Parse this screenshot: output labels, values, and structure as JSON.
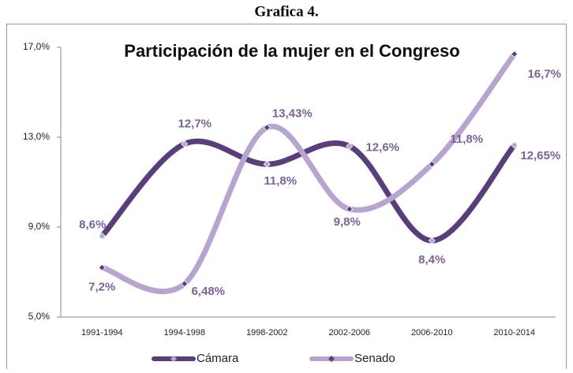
{
  "chart_data": {
    "type": "line",
    "heading": "Grafica 4.",
    "title": "Participación de la mujer en el Congreso",
    "categories": [
      "1991-1994",
      "1994-1998",
      "1998-2002",
      "2002-2006",
      "2006-2010",
      "2010-2014"
    ],
    "series": [
      {
        "name": "Cámara",
        "color": "#5a3e7c",
        "values": [
          8.6,
          12.7,
          11.8,
          12.6,
          8.4,
          12.65
        ],
        "value_labels": [
          "8,6%",
          "12,7%",
          "11,8%",
          "12,6%",
          "8,4%",
          "12,65%"
        ]
      },
      {
        "name": "Senado",
        "color": "#b7a5cf",
        "values": [
          7.2,
          6.48,
          13.43,
          9.8,
          11.8,
          16.7
        ],
        "value_labels": [
          "7,2%",
          "6,48%",
          "13,43%",
          "9,8%",
          "11,8%",
          "16,7%"
        ]
      }
    ],
    "ylim": [
      5,
      17
    ],
    "yticks": [
      {
        "value": 5,
        "label": "5,0%"
      },
      {
        "value": 9,
        "label": "9,0%"
      },
      {
        "value": 13,
        "label": "13,0%"
      },
      {
        "value": 17,
        "label": "17,0%"
      }
    ],
    "grid": false,
    "smooth": true,
    "legend": "bottom"
  }
}
